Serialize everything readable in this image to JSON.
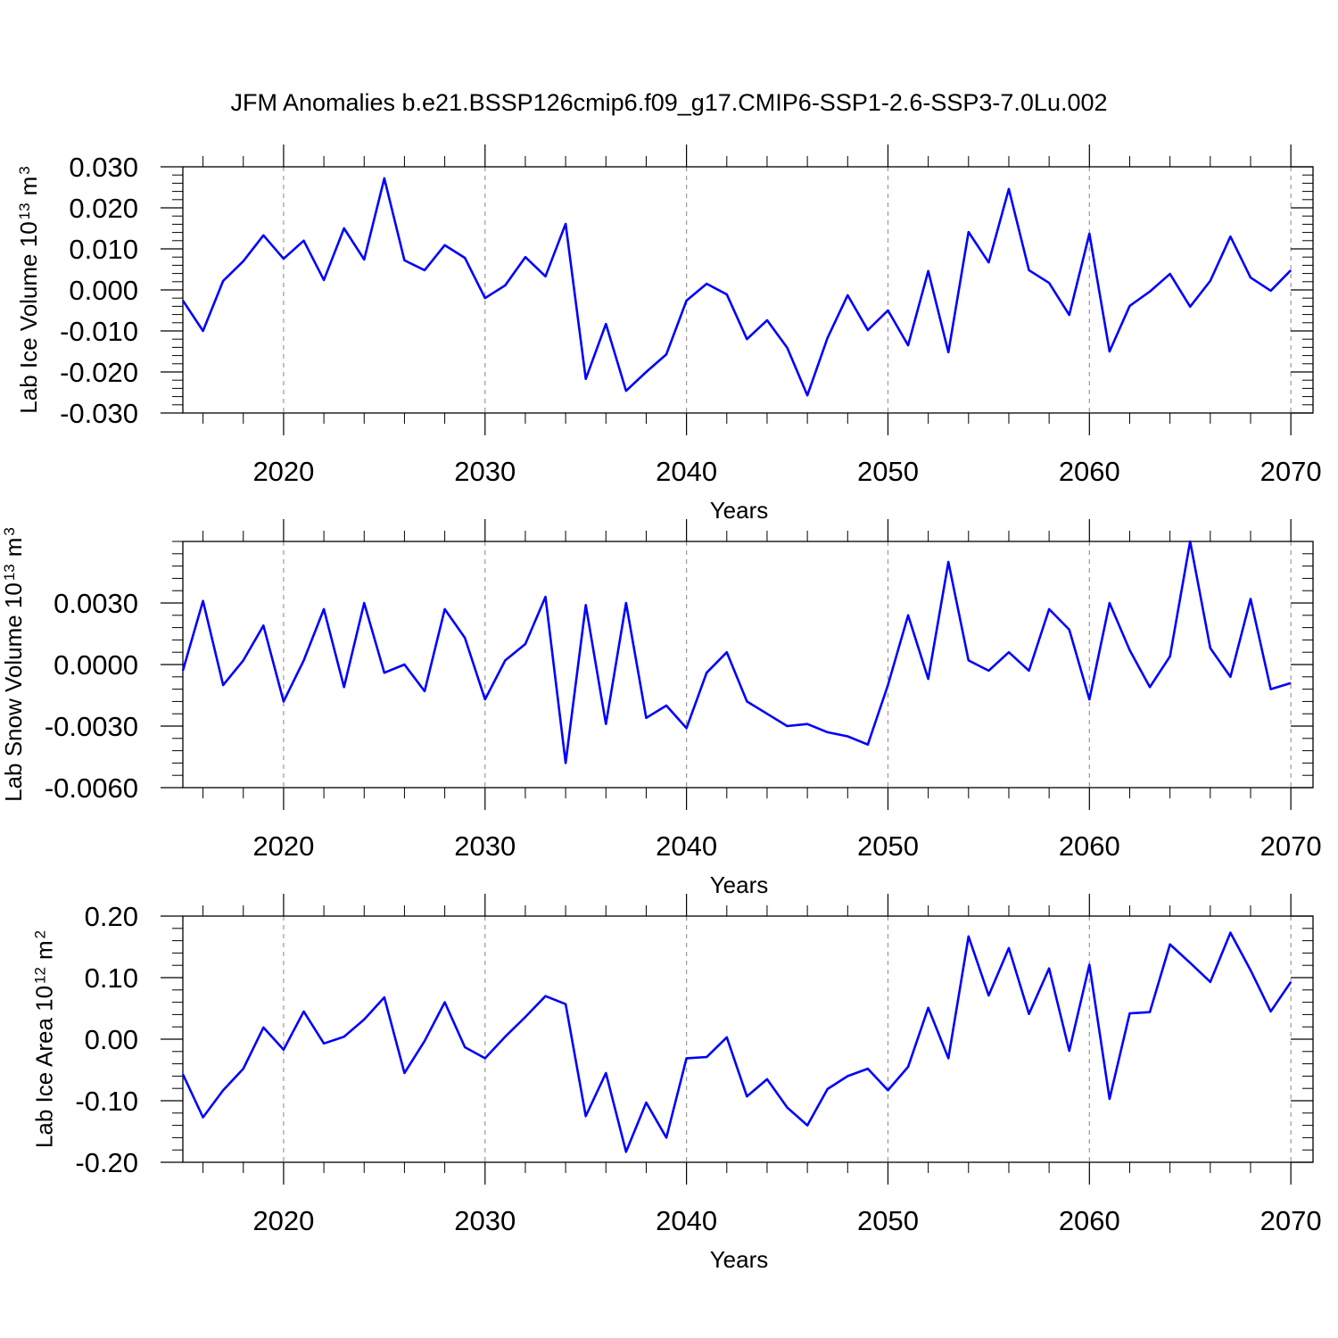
{
  "chart_data": [
    {
      "type": "line",
      "title": "JFM Anomalies b.e21.BSSP126cmip6.f09_g17.CMIP6-SSP1-2.6-SSP3-7.0Lu.002",
      "ylabel_parts": [
        "Lab Ice Volume 10",
        "13",
        "m",
        "3"
      ],
      "xlabel": "Years",
      "color": "#0000ff",
      "xgrid": true,
      "xlim": [
        2015,
        2071.1
      ],
      "xticks": [
        2020,
        2030,
        2040,
        2050,
        2060,
        2070
      ],
      "ylim": [
        -0.03,
        0.03
      ],
      "yticks": [
        {
          "value": 0.03,
          "label": "0.030"
        },
        {
          "value": 0.02,
          "label": "0.020"
        },
        {
          "value": 0.01,
          "label": "0.010"
        },
        {
          "value": 0,
          "label": "0.000"
        },
        {
          "value": -0.01,
          "label": "-0.010"
        },
        {
          "value": -0.02,
          "label": "-0.020"
        },
        {
          "value": -0.03,
          "label": "-0.030"
        }
      ],
      "x": [
        2015,
        2016,
        2017,
        2018,
        2019,
        2020,
        2021,
        2022,
        2023,
        2024,
        2025,
        2026,
        2027,
        2028,
        2029,
        2030,
        2031,
        2032,
        2033,
        2034,
        2035,
        2036,
        2037,
        2038,
        2039,
        2040,
        2041,
        2042,
        2043,
        2044,
        2045,
        2046,
        2047,
        2048,
        2049,
        2050,
        2051,
        2052,
        2053,
        2054,
        2055,
        2056,
        2057,
        2058,
        2059,
        2060,
        2061,
        2062,
        2063,
        2064,
        2065,
        2066,
        2067,
        2068,
        2069,
        2070
      ],
      "values": [
        -0.0026,
        -0.01,
        0.0022,
        0.007,
        0.0133,
        0.0076,
        0.012,
        0.0024,
        0.015,
        0.0074,
        0.0272,
        0.0072,
        0.0048,
        0.0109,
        0.0078,
        -0.002,
        0.0011,
        0.008,
        0.0033,
        0.0161,
        -0.0217,
        -0.0083,
        -0.0246,
        -0.02,
        -0.0157,
        -0.0026,
        0.0015,
        -0.0011,
        -0.012,
        -0.0074,
        -0.0141,
        -0.0257,
        -0.0117,
        -0.0013,
        -0.0098,
        -0.005,
        -0.0135,
        0.0046,
        -0.0152,
        0.0141,
        0.0067,
        0.0246,
        0.0048,
        0.0017,
        -0.0061,
        0.0137,
        -0.015,
        -0.0039,
        -0.0004,
        0.0039,
        -0.0041,
        0.0022,
        0.013,
        0.003,
        -0.0002,
        0.0048
      ]
    },
    {
      "type": "line",
      "ylabel_parts": [
        "Lab Snow Volume 10",
        "13",
        "m",
        "3"
      ],
      "xlabel": "Years",
      "color": "#0000ff",
      "xgrid": true,
      "xlim": [
        2015,
        2071.1
      ],
      "xticks": [
        2020,
        2030,
        2040,
        2050,
        2060,
        2070
      ],
      "ylim": [
        -0.006,
        0.006
      ],
      "yticks": [
        {
          "value": 0.003,
          "label": "0.0030"
        },
        {
          "value": 0,
          "label": "0.0000"
        },
        {
          "value": -0.003,
          "label": "-0.0030"
        },
        {
          "value": -0.006,
          "label": "-0.0060"
        }
      ],
      "x": [
        2015,
        2016,
        2017,
        2018,
        2019,
        2020,
        2021,
        2022,
        2023,
        2024,
        2025,
        2026,
        2027,
        2028,
        2029,
        2030,
        2031,
        2032,
        2033,
        2034,
        2035,
        2036,
        2037,
        2038,
        2039,
        2040,
        2041,
        2042,
        2043,
        2044,
        2045,
        2046,
        2047,
        2048,
        2049,
        2050,
        2051,
        2052,
        2053,
        2054,
        2055,
        2056,
        2057,
        2058,
        2059,
        2060,
        2061,
        2062,
        2063,
        2064,
        2065,
        2066,
        2067,
        2068,
        2069,
        2070
      ],
      "values": [
        -0.0003,
        0.0031,
        -0.001,
        0.0002,
        0.0019,
        -0.0018,
        0.0002,
        0.0027,
        -0.0011,
        0.003,
        -0.0004,
        0.0,
        -0.0013,
        0.0027,
        0.0013,
        -0.0017,
        0.0002,
        0.001,
        0.0033,
        -0.0048,
        0.0029,
        -0.0029,
        0.003,
        -0.0026,
        -0.002,
        -0.0031,
        -0.0004,
        0.0006,
        -0.0018,
        -0.0024,
        -0.003,
        -0.0029,
        -0.0033,
        -0.0035,
        -0.0039,
        -0.001,
        0.0024,
        -0.0007,
        0.005,
        0.0002,
        -0.0003,
        0.0006,
        -0.0003,
        0.0027,
        0.0017,
        -0.0017,
        0.003,
        0.0007,
        -0.0011,
        0.0004,
        0.006,
        0.0008,
        -0.0006,
        0.0032,
        -0.0012,
        -0.0009
      ]
    },
    {
      "type": "line",
      "ylabel_parts": [
        "Lab Ice Area 10",
        "12",
        "m",
        "2"
      ],
      "xlabel": "Years",
      "color": "#0000ff",
      "xgrid": true,
      "xlim": [
        2015,
        2071.1
      ],
      "xticks": [
        2020,
        2030,
        2040,
        2050,
        2060,
        2070
      ],
      "ylim": [
        -0.2,
        0.2
      ],
      "yticks": [
        {
          "value": 0.2,
          "label": "0.20"
        },
        {
          "value": 0.1,
          "label": "0.10"
        },
        {
          "value": 0,
          "label": "0.00"
        },
        {
          "value": -0.1,
          "label": "-0.10"
        },
        {
          "value": -0.2,
          "label": "-0.20"
        }
      ],
      "x": [
        2015,
        2016,
        2017,
        2018,
        2019,
        2020,
        2021,
        2022,
        2023,
        2024,
        2025,
        2026,
        2027,
        2028,
        2029,
        2030,
        2031,
        2032,
        2033,
        2034,
        2035,
        2036,
        2037,
        2038,
        2039,
        2040,
        2041,
        2042,
        2043,
        2044,
        2045,
        2046,
        2047,
        2048,
        2049,
        2050,
        2051,
        2052,
        2053,
        2054,
        2055,
        2056,
        2057,
        2058,
        2059,
        2060,
        2061,
        2062,
        2063,
        2064,
        2065,
        2066,
        2067,
        2068,
        2069,
        2070
      ],
      "values": [
        -0.057,
        -0.127,
        -0.083,
        -0.048,
        0.019,
        -0.017,
        0.045,
        -0.007,
        0.004,
        0.032,
        0.068,
        -0.055,
        -0.003,
        0.06,
        -0.013,
        -0.031,
        0.004,
        0.036,
        0.07,
        0.057,
        -0.125,
        -0.055,
        -0.183,
        -0.103,
        -0.16,
        -0.031,
        -0.029,
        0.003,
        -0.093,
        -0.065,
        -0.111,
        -0.14,
        -0.081,
        -0.06,
        -0.048,
        -0.083,
        -0.045,
        0.051,
        -0.031,
        0.167,
        0.071,
        0.148,
        0.041,
        0.115,
        -0.019,
        0.121,
        -0.097,
        0.042,
        0.044,
        0.154,
        0.124,
        0.093,
        0.173,
        0.112,
        0.045,
        0.093
      ]
    }
  ]
}
